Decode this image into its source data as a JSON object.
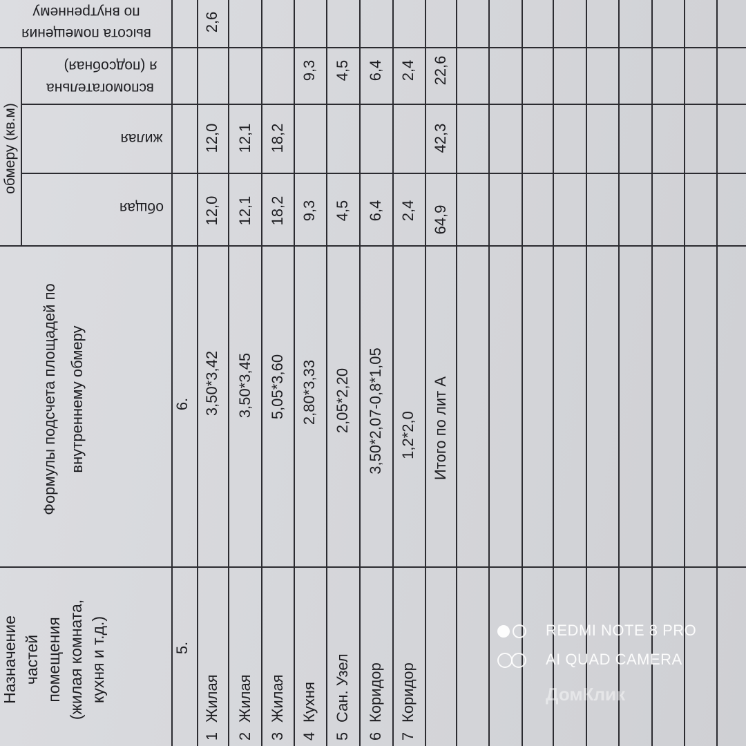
{
  "header": {
    "height_col": [
      "по внутреннему",
      "высота помещения"
    ],
    "area_group": "обмеру (кв.м)",
    "auxiliary": [
      "я (подсобная)",
      "вспомогательна"
    ],
    "living": "жилая",
    "total": "общая",
    "formula": "Формулы подсчета площадей по\nвнутреннему обмеру",
    "purpose": "Назначение\nчастей\nпомещения\n(жилая комната,\nкухня и т.д.)",
    "col_num_purpose": "5.",
    "col_num_formula": "6."
  },
  "rows": [
    {
      "num": "1",
      "name": "Жилая",
      "formula": "3,50*3,42",
      "total": "12,0",
      "living": "12,0",
      "aux": "",
      "height": "2,6"
    },
    {
      "num": "2",
      "name": "Жилая",
      "formula": "3,50*3,45",
      "total": "12,1",
      "living": "12,1",
      "aux": "",
      "height": ""
    },
    {
      "num": "3",
      "name": "Жилая",
      "formula": "5,05*3,60",
      "total": "18,2",
      "living": "18,2",
      "aux": "",
      "height": ""
    },
    {
      "num": "4",
      "name": "Кухня",
      "formula": "2,80*3,33",
      "total": "9,3",
      "living": "",
      "aux": "9,3",
      "height": ""
    },
    {
      "num": "5",
      "name": "Сан. Узел",
      "formula": "2,05*2,20",
      "total": "4,5",
      "living": "",
      "aux": "4,5",
      "height": ""
    },
    {
      "num": "6",
      "name": "Коридор",
      "formula": "3,50*2,07-0,8*1,05",
      "total": "6,4",
      "living": "",
      "aux": "6,4",
      "height": ""
    },
    {
      "num": "7",
      "name": "Коридор",
      "formula": "1,2*2,0",
      "total": "2,4",
      "living": "",
      "aux": "2,4",
      "height": ""
    }
  ],
  "summary": {
    "label": "Итого по лит А",
    "total": "64,9",
    "living": "42,3",
    "aux": "22,6"
  },
  "watermark": {
    "line1": "REDMI NOTE 8 PRO",
    "line2": "AI QUAD CAMERA",
    "brand": "ДомКлик"
  }
}
